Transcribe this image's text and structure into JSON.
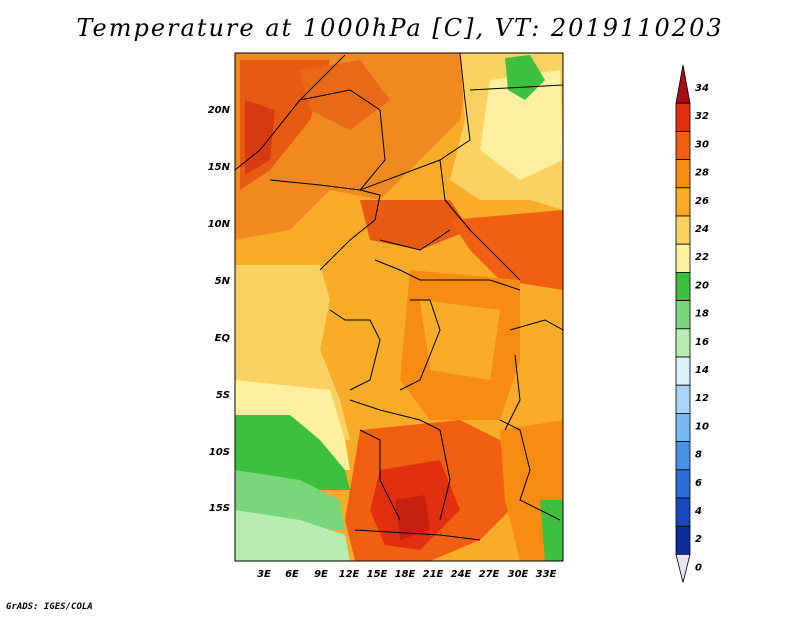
{
  "title": "Temperature at 1000hPa [C], VT: 2019110203",
  "credit": "GrADS: IGES/COLA",
  "lat_labels": [
    "20N",
    "15N",
    "10N",
    "5N",
    "EQ",
    "5S",
    "10S",
    "15S"
  ],
  "lon_labels": [
    "3E",
    "6E",
    "9E",
    "12E",
    "15E",
    "18E",
    "21E",
    "24E",
    "27E",
    "30E",
    "33E"
  ],
  "colorbar": {
    "labels": [
      "34",
      "32",
      "30",
      "28",
      "26",
      "24",
      "22",
      "20",
      "18",
      "16",
      "14",
      "12",
      "10",
      "8",
      "6",
      "4",
      "2",
      "0"
    ],
    "colors": [
      "#a50f15",
      "#e03010",
      "#f06010",
      "#f88c10",
      "#f9ac2a",
      "#fbd261",
      "#fdf09e",
      "#3ebf3e",
      "#7ad67a",
      "#b8ecb0",
      "#d8f0fa",
      "#a8d4f5",
      "#78b8f0",
      "#4a90e8",
      "#2a6cd8",
      "#1848c0",
      "#0c2c9c",
      "#081070"
    ]
  }
}
